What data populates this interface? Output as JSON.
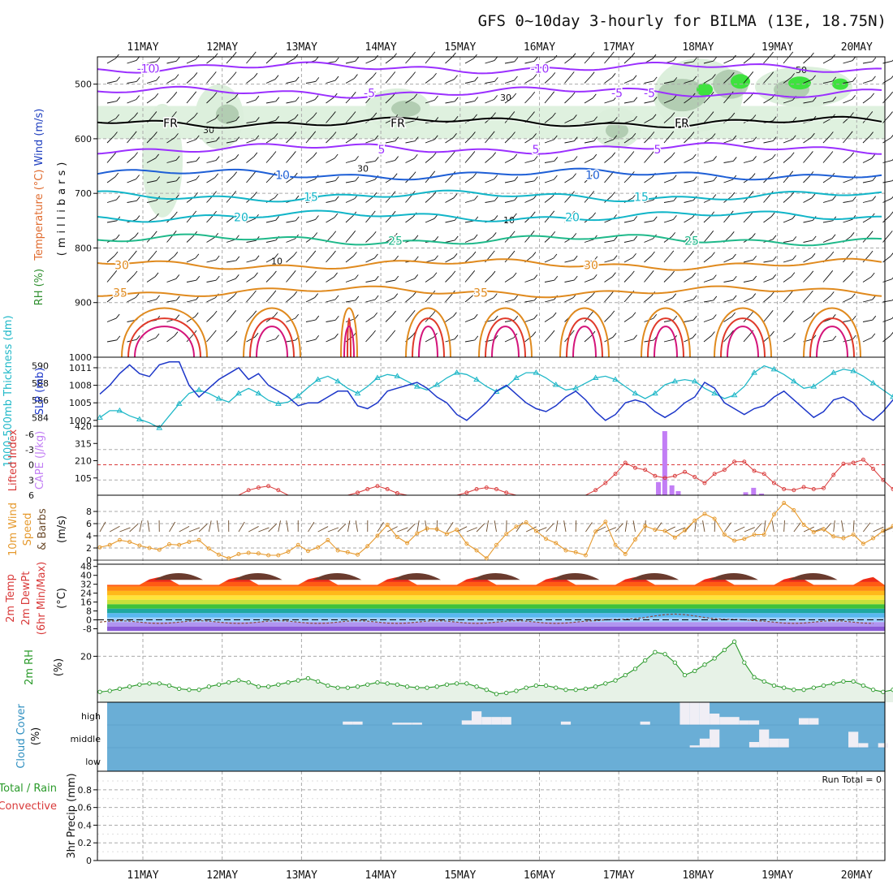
{
  "title": "GFS 0~10day 3-hourly for BILMA (13E, 18.75N)",
  "dates": [
    "11MAY",
    "12MAY",
    "13MAY",
    "14MAY",
    "15MAY",
    "16MAY",
    "17MAY",
    "18MAY",
    "19MAY",
    "20MAY"
  ],
  "colors": {
    "temp_cold": "#9b30ff",
    "temp_cool": "#1e5fd6",
    "temp_mild": "#11b5c8",
    "temp_warm": "#1fb98a",
    "temp_hot": "#e08a1e",
    "temp_vhot": "#e03a2a",
    "temp_ext": "#d4147a",
    "rh_light": "#dcefdc",
    "rh_mid": "#a8c4a8",
    "rh_high": "#3ee23e",
    "slp": "#1d37c9",
    "thickness": "#20b8c8",
    "lifted": "#d93a3a",
    "cape": "#c27ef5",
    "wind10m": "#e69a2e",
    "rh2m": "#2a9a2a",
    "cloud_bg": "#6aaed6",
    "cloud_fill": "#f0eef5"
  },
  "chart_data": [
    {
      "type": "heatmap",
      "name": "upper-air cross-section",
      "ylabel_parts": [
        "RH (%)",
        "Temperature (°C)",
        "Wind (m/s)"
      ],
      "ylabel2": "(millibars)",
      "yticks": [
        500,
        600,
        700,
        800,
        900,
        1000
      ],
      "ylim": [
        450,
        1000
      ],
      "isotherms": [
        {
          "label": "-10",
          "level": 470,
          "color": "#9b30ff"
        },
        {
          "label": "-5",
          "level": 515,
          "color": "#9b30ff"
        },
        {
          "label": "FR",
          "level": 570,
          "color": "#000000"
        },
        {
          "label": "5",
          "level": 618,
          "color": "#9b30ff"
        },
        {
          "label": "10",
          "level": 665,
          "color": "#1e5fd6"
        },
        {
          "label": "15",
          "level": 705,
          "color": "#11b5c8"
        },
        {
          "label": "20",
          "level": 742,
          "color": "#11b5c8"
        },
        {
          "label": "25",
          "level": 785,
          "color": "#1fb98a"
        },
        {
          "label": "30",
          "level": 830,
          "color": "#e08a1e"
        },
        {
          "label": "35",
          "level": 880,
          "color": "#e08a1e"
        }
      ],
      "rh_contours": [
        "10",
        "30",
        "50"
      ]
    },
    {
      "type": "line",
      "name": "sea level pressure and 1000-500mb thickness",
      "ylabel_left": "1000-500mb Thickness (dm)",
      "ylabel_right": "SLP (mb)",
      "thickness_ticks": [
        "590",
        "588",
        "586",
        "584"
      ],
      "slp_ticks": [
        "1011",
        "1008",
        "1005",
        "1002"
      ],
      "series": [
        {
          "name": "SLP (mb)",
          "values": [
            1006.5,
            1008,
            1010,
            1011.5,
            1010,
            1009.5,
            1011.5,
            1012,
            1012,
            1008,
            1006,
            1007.5,
            1009,
            1010,
            1011,
            1009,
            1010,
            1008,
            1007,
            1006,
            1004.5,
            1005,
            1005,
            1006,
            1007,
            1007,
            1004.5,
            1004,
            1005,
            1007,
            1007.5,
            1008,
            1008.5,
            1007.5,
            1006,
            1005,
            1003,
            1002,
            1003.5,
            1005,
            1007,
            1008,
            1006.5,
            1005,
            1004,
            1003.5,
            1004.5,
            1006,
            1007,
            1005.5,
            1003.5,
            1002,
            1003,
            1005,
            1005.5,
            1005,
            1003.5,
            1002.5,
            1003.5,
            1005,
            1006,
            1008.5,
            1007.5,
            1005,
            1004,
            1003,
            1004,
            1004.5,
            1006,
            1007,
            1005.5,
            1004,
            1002.5,
            1003.5,
            1005.5,
            1006,
            1005,
            1003,
            1002,
            1003.5,
            1005.5,
            1006.5
          ]
        },
        {
          "name": "Thickness (dm)",
          "values": [
            584.0,
            584.8,
            584.8,
            584.2,
            583.8,
            583.4,
            582.8,
            584.2,
            585.6,
            586.8,
            587.2,
            586.8,
            586.2,
            585.8,
            586.8,
            587.4,
            586.8,
            586.0,
            585.6,
            585.8,
            586.5,
            587.5,
            588.4,
            588.8,
            588.2,
            587.4,
            586.8,
            587.6,
            588.6,
            589.0,
            588.8,
            588.2,
            587.6,
            587.2,
            587.8,
            588.6,
            589.2,
            589.0,
            588.4,
            587.6,
            587.0,
            587.6,
            588.6,
            589.2,
            589.2,
            588.6,
            587.8,
            587.2,
            587.4,
            588.0,
            588.6,
            588.8,
            588.4,
            587.6,
            586.8,
            586.2,
            586.8,
            587.8,
            588.2,
            588.4,
            588.2,
            587.4,
            586.8,
            586.2,
            586.6,
            587.6,
            589.2,
            590.0,
            589.6,
            589.0,
            588.2,
            587.4,
            587.6,
            588.4,
            589.2,
            589.6,
            589.4,
            588.8,
            588.0,
            587.2,
            586.4,
            587.0
          ]
        }
      ]
    },
    {
      "type": "bar",
      "name": "lifted index and CAPE",
      "ylabel_left": "Lifted Index",
      "ylabel_right": "CAPE (J/kg)",
      "li_ticks": [
        "-6",
        "-3",
        "0",
        "3",
        "6"
      ],
      "cape_ticks": [
        "420",
        "315",
        "210",
        "105"
      ],
      "lifted_index": [
        6,
        6,
        6,
        6,
        6,
        6,
        6,
        6,
        6,
        6,
        6,
        6,
        6,
        6,
        6,
        5,
        4.5,
        4.2,
        5,
        6,
        6,
        6,
        6,
        6,
        6,
        6,
        5.5,
        4.8,
        4.2,
        4.8,
        5.6,
        6,
        6,
        6,
        6,
        6,
        6,
        5.5,
        4.8,
        4.5,
        4.8,
        5.5,
        6,
        6,
        6,
        6,
        6,
        6,
        6,
        6,
        5,
        3.6,
        1.8,
        -0.4,
        0.6,
        1.0,
        2.2,
        2.6,
        2.2,
        1.4,
        2.4,
        3.6,
        1.8,
        1.0,
        -0.6,
        -0.6,
        1.2,
        1.8,
        3.6,
        4.8,
        5.0,
        4.4,
        4.8,
        4.6,
        2.0,
        -0.2,
        -0.4,
        -1.0,
        0.8,
        3.0,
        4.8,
        6.0
      ],
      "cape_bars": [
        {
          "time": 6.5,
          "value": 80
        },
        {
          "time": 6.58,
          "value": 390
        },
        {
          "time": 6.67,
          "value": 60
        },
        {
          "time": 6.75,
          "value": 25
        },
        {
          "time": 7.6,
          "value": 18
        },
        {
          "time": 7.7,
          "value": 45
        },
        {
          "time": 7.8,
          "value": 10
        }
      ]
    },
    {
      "type": "line",
      "name": "10m wind speed and barbs",
      "ylabel_parts": [
        "10m Wind",
        "Speed",
        "& Barbs"
      ],
      "yunit": "(m/s)",
      "yticks": [
        "8",
        "6",
        "4",
        "2",
        "0"
      ],
      "values": [
        2.1,
        2.5,
        3.3,
        3.0,
        2.4,
        2.0,
        1.7,
        2.6,
        2.5,
        3.0,
        3.3,
        1.9,
        0.9,
        0.3,
        1.0,
        1.2,
        1.1,
        0.8,
        0.8,
        1.4,
        2.5,
        1.5,
        2.1,
        3.3,
        1.6,
        1.3,
        0.9,
        2.3,
        4.0,
        5.8,
        3.8,
        2.8,
        4.4,
        5.2,
        5.1,
        4.3,
        5.0,
        2.7,
        1.6,
        0.3,
        2.5,
        4.3,
        5.5,
        6.2,
        4.8,
        3.5,
        2.8,
        1.6,
        1.3,
        0.8,
        4.7,
        6.3,
        2.5,
        1.0,
        3.4,
        5.6,
        5.0,
        4.8,
        3.7,
        4.9,
        6.5,
        7.6,
        6.8,
        4.2,
        3.2,
        3.5,
        4.2,
        4.2,
        7.5,
        9.4,
        8.2,
        5.8,
        4.6,
        5.1,
        3.9,
        3.6,
        4.2,
        2.7,
        3.6,
        4.8,
        5.6,
        5.9
      ]
    },
    {
      "type": "area",
      "name": "2m temperature and dew point",
      "ylabel_parts": [
        "2m Temp",
        "2m DewPt",
        "(6hr Min/Max)"
      ],
      "yunit": "(°C)",
      "yticks": [
        "48",
        "40",
        "32",
        "24",
        "16",
        "8",
        "0",
        "-8"
      ],
      "temp_min": 28,
      "temp_max": 43,
      "dewpoint_range": [
        -8,
        10
      ]
    },
    {
      "type": "area",
      "name": "2m relative humidity",
      "ylabel": "2m RH",
      "yunit": "(%)",
      "yticks": [
        "20"
      ],
      "values": [
        3,
        3.5,
        4.5,
        5.5,
        6.5,
        7,
        7,
        6,
        4.5,
        4,
        4,
        5.5,
        6.5,
        7.5,
        8.5,
        7.5,
        5.5,
        5.5,
        6.5,
        7.5,
        8.5,
        9.5,
        8,
        6,
        5,
        5,
        5.5,
        6.5,
        7.5,
        7,
        6.5,
        5.5,
        5,
        5,
        5.5,
        6.5,
        7,
        7,
        5.5,
        4,
        2,
        2.5,
        3.5,
        5,
        6,
        6,
        5,
        4,
        4,
        4.5,
        5.5,
        7,
        8.5,
        11,
        14,
        18,
        22,
        21,
        17,
        11,
        13,
        16,
        19,
        23,
        27,
        17,
        10,
        8,
        6,
        5,
        4,
        4,
        5,
        6,
        7,
        8,
        8,
        6,
        4,
        3,
        4,
        6,
        9.5,
        12,
        13.5
      ]
    },
    {
      "type": "bar",
      "name": "cloud cover",
      "ylabel": "Cloud Cover",
      "yunit": "(%)",
      "levels": [
        "high",
        "middle",
        "low"
      ],
      "high_fraction": [
        0,
        0,
        0,
        0,
        0,
        0,
        0,
        0,
        0,
        0,
        0,
        0,
        0,
        0,
        0,
        0,
        0,
        0,
        0,
        0,
        0,
        0,
        0,
        0,
        0,
        0.15,
        0.15,
        0,
        0,
        0,
        0.1,
        0.1,
        0.1,
        0,
        0,
        0,
        0,
        0.2,
        0.6,
        0.35,
        0.35,
        0.35,
        0,
        0,
        0,
        0,
        0,
        0.15,
        0,
        0,
        0,
        0,
        0,
        0,
        0,
        0.15,
        0,
        0,
        0,
        1,
        1,
        1,
        0.5,
        0.35,
        0.35,
        0.2,
        0.2,
        0,
        0,
        0,
        0,
        0.3,
        0.3,
        0,
        0,
        0,
        0,
        0,
        0,
        0,
        0,
        0
      ],
      "middle_fraction": [
        0,
        0,
        0,
        0,
        0,
        0,
        0,
        0,
        0,
        0,
        0,
        0,
        0,
        0,
        0,
        0,
        0,
        0,
        0,
        0,
        0,
        0,
        0,
        0,
        0,
        0,
        0,
        0,
        0,
        0,
        0,
        0,
        0,
        0,
        0,
        0,
        0,
        0,
        0,
        0,
        0,
        0,
        0,
        0,
        0,
        0,
        0,
        0,
        0,
        0,
        0,
        0,
        0,
        0,
        0,
        0,
        0,
        0,
        0,
        0,
        0.1,
        0.4,
        0.8,
        0,
        0,
        0,
        0.25,
        0.8,
        0.4,
        0.4,
        0,
        0,
        0,
        0,
        0,
        0,
        0.7,
        0.2,
        0,
        0.2,
        0,
        0
      ]
    },
    {
      "type": "bar",
      "name": "3hr precipitation",
      "ylabel_parts": [
        "Total / Rain",
        "Convective"
      ],
      "ylabel2": "3hr Precip (mm)",
      "yticks": [
        "0.8",
        "0.6",
        "0.4",
        "0.2",
        "0"
      ],
      "run_total": "Run Total = 0",
      "values": []
    }
  ]
}
